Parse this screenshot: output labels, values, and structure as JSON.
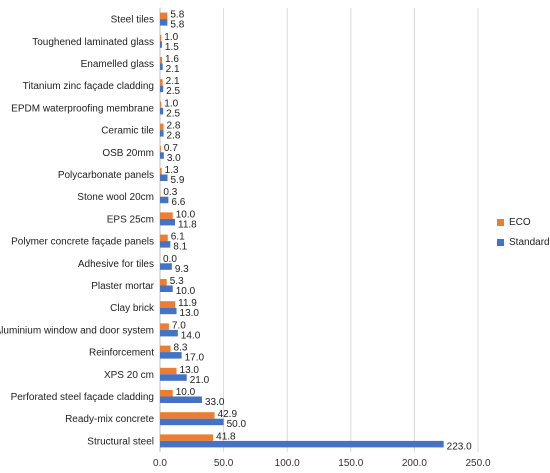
{
  "chart_data": {
    "type": "bar",
    "orientation": "horizontal",
    "categories": [
      "Steel tiles",
      "Toughened laminated glass",
      "Enamelled glass",
      "Titanium zinc façade cladding",
      "EPDM waterproofing membrane",
      "Ceramic tile",
      "OSB 20mm",
      "Polycarbonate panels",
      "Stone wool 20cm",
      "EPS 25cm",
      "Polymer concrete façade panels",
      "Adhesive for tiles",
      "Plaster mortar",
      "Clay brick",
      "Aluminium window and door system",
      "Reinforcement",
      "XPS 20 cm",
      "Perforated steel façade cladding",
      "Ready-mix concrete",
      "Structural steel"
    ],
    "series": [
      {
        "name": "ECO",
        "color": "#ED7D31",
        "values": [
          5.8,
          1.0,
          1.6,
          2.1,
          1.0,
          2.8,
          0.7,
          1.3,
          0.3,
          10.0,
          6.1,
          0.0,
          5.3,
          11.9,
          7.0,
          8.3,
          13.0,
          10.0,
          42.9,
          41.8
        ],
        "labels": [
          "5.8",
          "1.0",
          "1.6",
          "2.1",
          "1.0",
          "2.8",
          "0.7",
          "1.3",
          "0.3",
          "10.0",
          "6.1",
          "0.0",
          "5.3",
          "11.9",
          "7.0",
          "8.3",
          "13.0",
          "10.0",
          "42.9",
          "41.8"
        ]
      },
      {
        "name": "Standard",
        "color": "#4472C4",
        "values": [
          5.8,
          1.5,
          2.1,
          2.5,
          2.5,
          2.8,
          3.0,
          5.9,
          6.6,
          11.8,
          8.1,
          9.3,
          10.0,
          13.0,
          14.0,
          17.0,
          21.0,
          33.0,
          50.0,
          223.0
        ],
        "labels": [
          "5.8",
          "1.5",
          "2.1",
          "2.5",
          "2.5",
          "2.8",
          "3.0",
          "5.9",
          "6.6",
          "11.8",
          "8.1",
          "9.3",
          "10.0",
          "13.0",
          "14.0",
          "17.0",
          "21.0",
          "33.0",
          "50.0",
          "223.0"
        ]
      }
    ],
    "xlim": [
      0,
      250
    ],
    "xticks": [
      "0.0",
      "50.0",
      "100.0",
      "150.0",
      "200.0",
      "250.0"
    ],
    "grid": true,
    "legend_position": "right",
    "title": "",
    "xlabel": "",
    "ylabel": ""
  }
}
